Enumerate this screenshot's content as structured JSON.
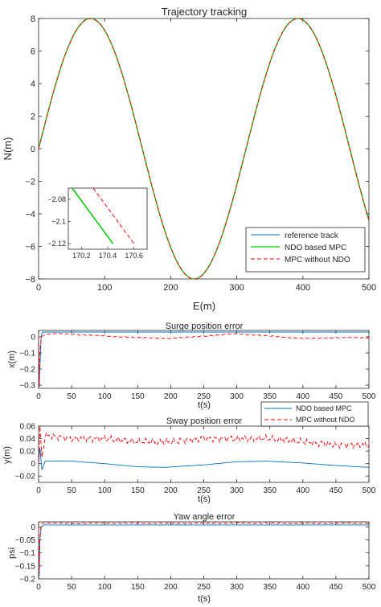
{
  "chart_data": [
    {
      "type": "line",
      "title": "Trajectory tracking",
      "xlabel": "E(m)",
      "ylabel": "N(m)",
      "xlim": [
        0,
        500
      ],
      "ylim": [
        -8,
        8
      ],
      "xticks": [
        "0",
        "100",
        "200",
        "300",
        "400",
        "500"
      ],
      "yticks": [
        "8",
        "6",
        "4",
        "2",
        "0",
        "−2",
        "−4",
        "−6",
        "−8"
      ],
      "grid": false,
      "legend_position": "bottom-right",
      "series": [
        {
          "name": "reference track",
          "color": "#0072bd",
          "style": "solid",
          "function": "N = -8*cos(2*pi*(E-78)/314) ... shown as sinusoid",
          "x": [
            0,
            39,
            78,
            117,
            157,
            196,
            235,
            274,
            314,
            353,
            392,
            431,
            471,
            500
          ],
          "y": [
            0,
            5.7,
            8,
            5.7,
            0,
            -5.7,
            -8,
            -5.7,
            0,
            5.7,
            8,
            5.7,
            0,
            -4.3
          ]
        },
        {
          "name": "NDO based MPC",
          "color": "#00cc00",
          "style": "solid",
          "x": [
            0,
            39,
            78,
            117,
            157,
            196,
            235,
            274,
            314,
            353,
            392,
            431,
            471,
            500
          ],
          "y": [
            0,
            5.7,
            8,
            5.7,
            0,
            -5.7,
            -8,
            -5.7,
            0,
            5.7,
            8,
            5.7,
            0,
            -4.3
          ]
        },
        {
          "name": "MPC without NDO",
          "color": "#ff0000",
          "style": "dashed",
          "x": [
            0,
            39,
            78,
            117,
            157,
            196,
            235,
            274,
            314,
            353,
            392,
            431,
            471,
            500
          ],
          "y": [
            0,
            5.7,
            8,
            5.7,
            0,
            -5.7,
            -8,
            -5.7,
            0,
            5.7,
            8,
            5.7,
            0,
            -4.3
          ]
        }
      ],
      "inset": {
        "xlim": [
          170.1,
          170.7
        ],
        "ylim": [
          -2.125,
          -2.07
        ],
        "xticks": [
          "170.2",
          "170.4",
          "170.6"
        ],
        "yticks": [
          "−2.08",
          "−2.1",
          "−2.12"
        ],
        "series": [
          {
            "name": "NDO based MPC",
            "x": [
              170.13,
              170.44
            ],
            "y": [
              -2.07,
              -2.12
            ]
          },
          {
            "name": "MPC without NDO",
            "x": [
              170.29,
              170.6
            ],
            "y": [
              -2.07,
              -2.12
            ]
          }
        ]
      }
    },
    {
      "type": "line",
      "title": "Surge position error",
      "xlabel": "t(s)",
      "ylabel": "x(m)",
      "xlim": [
        0,
        500
      ],
      "ylim": [
        -0.32,
        0.04
      ],
      "xticks": [
        "0",
        "50",
        "100",
        "150",
        "200",
        "250",
        "300",
        "350",
        "400",
        "450",
        "500"
      ],
      "yticks": [
        "0",
        "−0.1",
        "−0.2",
        "−0.3"
      ],
      "series": [
        {
          "name": "NDO based MPC",
          "x": [
            0,
            1,
            2,
            4,
            6,
            10,
            100,
            200,
            300,
            400,
            500
          ],
          "y": [
            0,
            -0.31,
            -0.2,
            0.01,
            0.03,
            0.03,
            0.03,
            0.03,
            0.03,
            0.03,
            0.03
          ]
        },
        {
          "name": "MPC without NDO",
          "x": [
            0,
            1,
            2,
            4,
            10,
            30,
            60,
            100,
            150,
            200,
            250,
            300,
            350,
            400,
            450,
            500
          ],
          "y": [
            0,
            -0.3,
            -0.1,
            0.0,
            0.015,
            0.02,
            0.015,
            0.005,
            -0.005,
            -0.01,
            0.005,
            0.02,
            0.005,
            -0.01,
            -0.005,
            -0.005
          ]
        }
      ]
    },
    {
      "type": "line",
      "title": "Sway position error",
      "xlabel": "t(s)",
      "ylabel": "y(m)",
      "xlim": [
        0,
        500
      ],
      "ylim": [
        -0.03,
        0.06
      ],
      "xticks": [
        "0",
        "50",
        "100",
        "150",
        "200",
        "250",
        "300",
        "350",
        "400",
        "450",
        "500"
      ],
      "yticks": [
        "0.06",
        "0.04",
        "0.02",
        "0",
        "−0.02"
      ],
      "legend_position": "top-right",
      "series": [
        {
          "name": "NDO based MPC",
          "x": [
            0,
            2,
            5,
            10,
            50,
            100,
            150,
            190,
            250,
            300,
            345,
            400,
            450,
            500
          ],
          "y": [
            0,
            0.025,
            -0.01,
            0.004,
            0.004,
            0.0,
            -0.005,
            -0.006,
            -0.002,
            0.003,
            0.004,
            0.001,
            -0.003,
            -0.006
          ]
        },
        {
          "name": "MPC without NDO",
          "x": [
            0,
            2,
            5,
            10,
            50,
            100,
            150,
            200,
            250,
            300,
            350,
            400,
            450,
            500
          ],
          "y": [
            0,
            0.06,
            0.01,
            0.045,
            0.04,
            0.04,
            0.035,
            0.035,
            0.04,
            0.04,
            0.04,
            0.035,
            0.03,
            0.03
          ]
        }
      ]
    },
    {
      "type": "line",
      "title": "Yaw angle error",
      "xlabel": "t(s)",
      "ylabel": "psi",
      "xlim": [
        0,
        500
      ],
      "ylim": [
        -0.2,
        0.02
      ],
      "xticks": [
        "0",
        "50",
        "100",
        "150",
        "200",
        "250",
        "300",
        "350",
        "400",
        "450",
        "500"
      ],
      "yticks": [
        "0",
        "−0.05",
        "−0.1",
        "−0.15",
        "−0.2"
      ],
      "series": [
        {
          "name": "NDO based MPC",
          "x": [
            0,
            1,
            2,
            4,
            8,
            50,
            100,
            200,
            300,
            400,
            500
          ],
          "y": [
            0,
            -0.19,
            -0.05,
            0.0,
            0.008,
            0.008,
            0.008,
            0.008,
            0.008,
            0.008,
            0.008
          ]
        },
        {
          "name": "MPC without NDO",
          "x": [
            0,
            1,
            2,
            4,
            8,
            50,
            100,
            200,
            300,
            400,
            500
          ],
          "y": [
            0,
            -0.18,
            -0.04,
            0.01,
            0.015,
            0.014,
            0.015,
            0.014,
            0.015,
            0.014,
            0.015
          ]
        }
      ]
    }
  ],
  "legend_main": {
    "items": [
      "reference track",
      "NDO based MPC",
      "MPC without NDO"
    ]
  },
  "legend_sway": {
    "items": [
      "NDO based MPC",
      "MPC without NDO"
    ]
  }
}
